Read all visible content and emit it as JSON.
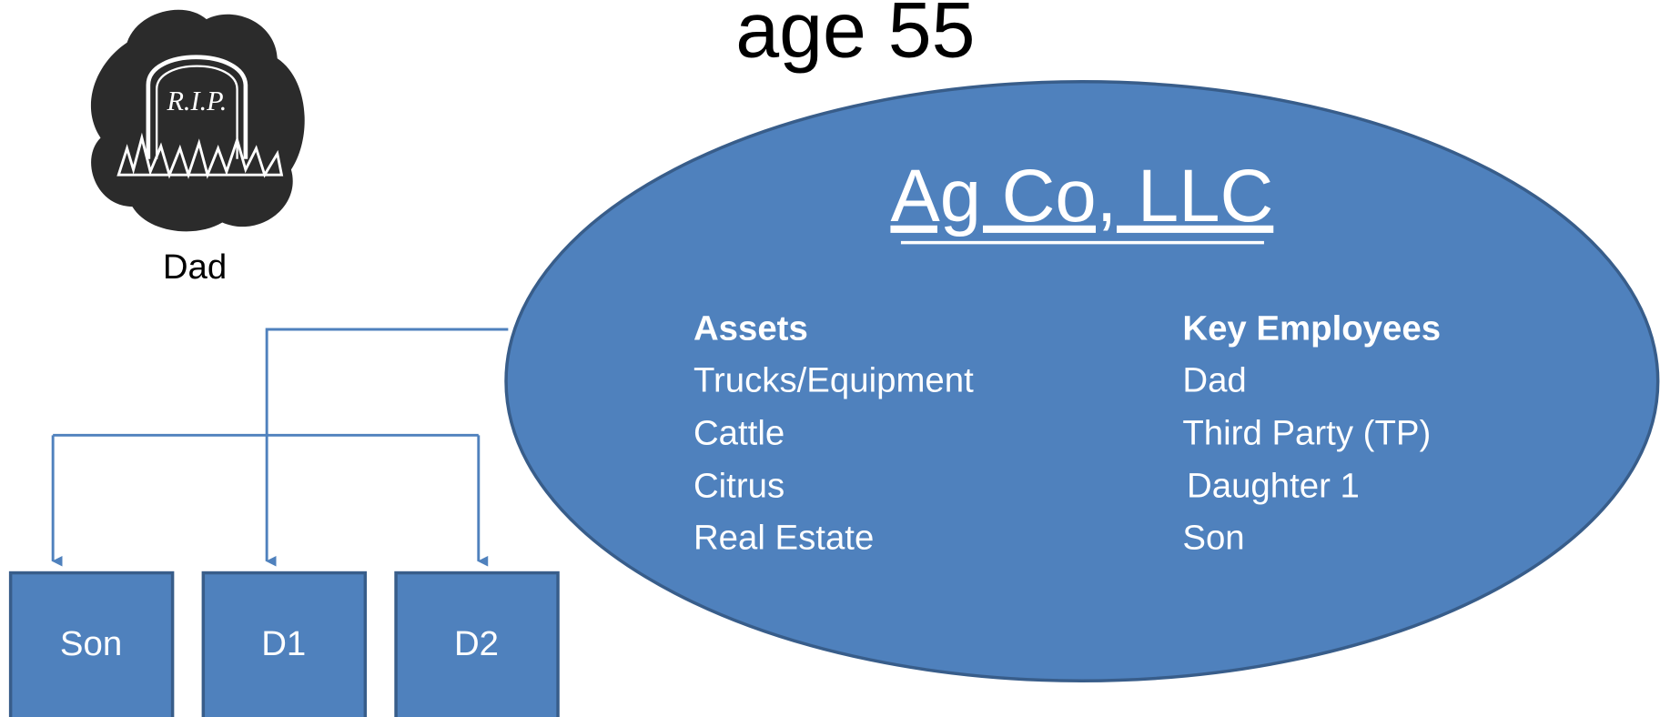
{
  "title": "age 55",
  "person": {
    "label": "Dad"
  },
  "company": {
    "name": "Ag Co, LLC",
    "assets": {
      "header": "Assets",
      "items": [
        "Trucks/Equipment",
        "Cattle",
        "Citrus",
        "Real Estate"
      ]
    },
    "key_employees": {
      "header": "Key Employees",
      "items": [
        "Dad",
        "Third Party (TP)",
        "Daughter 1",
        "Son"
      ]
    }
  },
  "heirs": [
    "Son",
    "D1",
    "D2"
  ]
}
